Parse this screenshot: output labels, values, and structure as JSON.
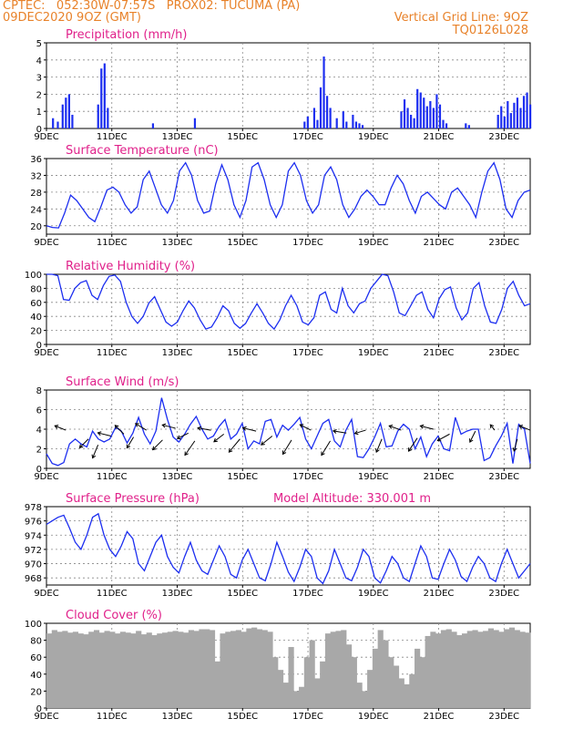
{
  "header": {
    "line1_left": "CPTEC:   052:30W-07:57S   PROX02: TUCUMA (PA)",
    "line2_left": "09DEC2020 9OZ (GMT)",
    "line2_right": "Vertical Grid Line: 9OZ",
    "line3_right": "TQ0126L028"
  },
  "colors": {
    "header": "#e8822a",
    "title": "#e0208a",
    "series": "#1c2ef0",
    "cloud": "#a8a8a8",
    "grid": "#888888"
  },
  "x_ticks": [
    "9DEC",
    "11DEC",
    "13DEC",
    "15DEC",
    "17DEC",
    "19DEC",
    "21DEC",
    "23DEC"
  ],
  "chart_data": [
    {
      "type": "bar",
      "title": "Precipitation (mm/h)",
      "ylim": [
        0,
        5
      ],
      "yticks": [
        "0",
        "1",
        "2",
        "3",
        "4",
        "5"
      ],
      "x": [
        0.2,
        0.35,
        0.5,
        0.6,
        0.7,
        0.8,
        1.6,
        1.7,
        1.8,
        1.9,
        3.3,
        4.6,
        8.0,
        8.1,
        8.3,
        8.4,
        8.5,
        8.6,
        8.7,
        8.8,
        9.0,
        9.2,
        9.3,
        9.5,
        9.6,
        9.7,
        9.8,
        11.0,
        11.1,
        11.2,
        11.3,
        11.4,
        11.5,
        11.6,
        11.7,
        11.8,
        11.9,
        12.0,
        12.1,
        12.2,
        12.3,
        12.4,
        13.0,
        13.1,
        14.0,
        14.1,
        14.2,
        14.3,
        14.4,
        14.5,
        14.6,
        14.7,
        14.8,
        14.9,
        15.0
      ],
      "values": [
        0.6,
        0.4,
        1.4,
        1.8,
        2.0,
        0.8,
        1.4,
        3.5,
        3.8,
        1.2,
        0.3,
        0.6,
        0.4,
        0.7,
        1.2,
        0.5,
        2.4,
        4.2,
        1.9,
        1.2,
        0.6,
        1.0,
        0.4,
        0.8,
        0.4,
        0.3,
        0.2,
        1.0,
        1.7,
        1.2,
        0.8,
        0.6,
        2.3,
        2.1,
        1.8,
        1.3,
        1.6,
        1.2,
        2.0,
        1.4,
        0.5,
        0.3,
        0.3,
        0.2,
        0.8,
        1.3,
        0.7,
        1.6,
        0.9,
        1.5,
        1.8,
        1.2,
        1.9,
        2.1,
        1.4
      ],
      "x_range": [
        0,
        15
      ]
    },
    {
      "type": "line",
      "title": "Surface Temperature (nC)",
      "ylim": [
        18,
        36
      ],
      "yticks": [
        "20",
        "24",
        "28",
        "32",
        "36"
      ],
      "x_range": [
        0,
        15
      ],
      "values": [
        20,
        19.6,
        19.5,
        23,
        27.3,
        26,
        24,
        22,
        21,
        24.5,
        28.5,
        29.2,
        28,
        25,
        23,
        24.5,
        31,
        33,
        29,
        25,
        23,
        26,
        33,
        35,
        32,
        26,
        23,
        23.5,
        30,
        34.5,
        31,
        25,
        22,
        26,
        34,
        35,
        31,
        25,
        22,
        25,
        33,
        35,
        32,
        26,
        23,
        25,
        32,
        34,
        31,
        25,
        22,
        24,
        27,
        28.5,
        27,
        25,
        25,
        29,
        32,
        30,
        26,
        23,
        27,
        28,
        26.5,
        25,
        24,
        28,
        29,
        27,
        25,
        22,
        28,
        33,
        35,
        31,
        24,
        22,
        26,
        28,
        28.5
      ]
    },
    {
      "type": "line",
      "title": "Relative Humidity (%)",
      "ylim": [
        0,
        100
      ],
      "yticks": [
        "0",
        "20",
        "40",
        "60",
        "80",
        "100"
      ],
      "x_range": [
        0,
        15
      ],
      "values": [
        100,
        100,
        98,
        64,
        63,
        80,
        88,
        91,
        70,
        64,
        84,
        97,
        99,
        90,
        60,
        40,
        30,
        40,
        59,
        68,
        50,
        32,
        26,
        32,
        48,
        62,
        52,
        35,
        22,
        25,
        38,
        55,
        48,
        30,
        23,
        30,
        45,
        58,
        45,
        30,
        22,
        35,
        55,
        70,
        55,
        32,
        28,
        38,
        70,
        75,
        50,
        45,
        80,
        55,
        45,
        58,
        62,
        80,
        90,
        100,
        98,
        75,
        45,
        41,
        55,
        70,
        75,
        50,
        38,
        65,
        78,
        82,
        52,
        35,
        45,
        80,
        88,
        55,
        32,
        30,
        50,
        80,
        90,
        70,
        55,
        58
      ]
    },
    {
      "type": "line",
      "title": "Surface Wind (m/s)",
      "ylim": [
        0,
        8
      ],
      "yticks": [
        "0",
        "2",
        "4",
        "6",
        "8"
      ],
      "x_range": [
        0,
        15
      ],
      "values": [
        1.5,
        0.5,
        0.3,
        0.6,
        2.5,
        3.0,
        2.5,
        2.2,
        3.8,
        3.0,
        2.7,
        3.0,
        4.2,
        3.8,
        2.6,
        3.6,
        5.2,
        3.5,
        2.5,
        3.8,
        7.2,
        5.0,
        3.2,
        2.7,
        3.5,
        4.5,
        5.3,
        4.0,
        3.0,
        3.3,
        4.3,
        5.0,
        3.0,
        3.5,
        4.6,
        2.0,
        2.8,
        2.5,
        4.8,
        5.0,
        3.2,
        4.4,
        3.9,
        4.5,
        5.2,
        3.0,
        2.0,
        3.3,
        4.6,
        5.0,
        2.8,
        2.2,
        3.9,
        5.0,
        1.2,
        1.1,
        2.0,
        3.2,
        4.6,
        2.2,
        2.3,
        3.8,
        4.5,
        4.0,
        2.0,
        3.2,
        1.2,
        2.5,
        3.3,
        2.0,
        1.8,
        5.2,
        3.5,
        3.8,
        4.0,
        4.0,
        0.8,
        1.1,
        2.3,
        3.3,
        4.6,
        0.5,
        4.5,
        4.0,
        0.5
      ],
      "vectors": [
        {
          "x": 0.6,
          "y": 3.9,
          "u": -1,
          "v": 0.4
        },
        {
          "x": 1.3,
          "y": 3.0,
          "u": -0.8,
          "v": -0.8
        },
        {
          "x": 1.6,
          "y": 2.4,
          "u": -0.5,
          "v": -1.2
        },
        {
          "x": 2.0,
          "y": 3.3,
          "u": -1.2,
          "v": 0.3
        },
        {
          "x": 2.4,
          "y": 3.5,
          "u": -0.8,
          "v": 0.8
        },
        {
          "x": 2.7,
          "y": 3.2,
          "u": -0.6,
          "v": -1.0
        },
        {
          "x": 3.1,
          "y": 3.9,
          "u": -1,
          "v": 0.6
        },
        {
          "x": 3.6,
          "y": 2.9,
          "u": -0.9,
          "v": -0.9
        },
        {
          "x": 4.0,
          "y": 4.1,
          "u": -1.2,
          "v": 0.3
        },
        {
          "x": 4.4,
          "y": 3.6,
          "u": -1.0,
          "v": -0.5
        },
        {
          "x": 4.6,
          "y": 2.8,
          "u": -0.9,
          "v": -1.3
        },
        {
          "x": 5.1,
          "y": 3.9,
          "u": -1.2,
          "v": 0.2
        },
        {
          "x": 5.5,
          "y": 3.5,
          "u": -0.9,
          "v": -0.7
        },
        {
          "x": 6.0,
          "y": 3.0,
          "u": -1.0,
          "v": -1.2
        },
        {
          "x": 6.5,
          "y": 3.8,
          "u": -1.2,
          "v": 0.3
        },
        {
          "x": 7.0,
          "y": 3.3,
          "u": -1,
          "v": -0.8
        },
        {
          "x": 7.6,
          "y": 2.9,
          "u": -0.8,
          "v": -1.3
        },
        {
          "x": 8.2,
          "y": 3.9,
          "u": -1,
          "v": 0.5
        },
        {
          "x": 8.8,
          "y": 2.8,
          "u": -0.8,
          "v": -1.3
        },
        {
          "x": 9.3,
          "y": 3.6,
          "u": -1.2,
          "v": 0.2
        },
        {
          "x": 9.9,
          "y": 3.9,
          "u": -1,
          "v": -0.3
        },
        {
          "x": 10.4,
          "y": 3.0,
          "u": -0.5,
          "v": -1.2
        },
        {
          "x": 11.0,
          "y": 3.9,
          "u": -1.1,
          "v": 0.4
        },
        {
          "x": 11.5,
          "y": 3.1,
          "u": -0.8,
          "v": -1.2
        },
        {
          "x": 12.0,
          "y": 4.0,
          "u": -1.2,
          "v": 0.3
        },
        {
          "x": 12.5,
          "y": 3.5,
          "u": -1.1,
          "v": -0.6
        },
        {
          "x": 13.3,
          "y": 3.8,
          "u": -0.5,
          "v": -1.0
        },
        {
          "x": 13.9,
          "y": 3.9,
          "u": -0.4,
          "v": 0.5
        },
        {
          "x": 14.6,
          "y": 3.0,
          "u": -0.3,
          "v": -1.1
        },
        {
          "x": 15.0,
          "y": 3.9,
          "u": -1.0,
          "v": 0.4
        }
      ]
    },
    {
      "type": "line",
      "title": "Surface Pressure (hPa)",
      "annotation": "Model Altitude: 330.001 m",
      "ylim": [
        967,
        978
      ],
      "yticks": [
        "968",
        "970",
        "972",
        "974",
        "976",
        "978"
      ],
      "x_range": [
        0,
        15
      ],
      "values": [
        975.5,
        976,
        976.5,
        976.8,
        975,
        973,
        972,
        974,
        976.5,
        977,
        974,
        972,
        971,
        972.5,
        974.5,
        973.5,
        970,
        969,
        971,
        973,
        974,
        971,
        969.5,
        968.7,
        971,
        973,
        970.5,
        969,
        968.5,
        970.5,
        972.5,
        971,
        968.5,
        968,
        970.5,
        972,
        970,
        968,
        967.6,
        970,
        973,
        971,
        968.8,
        967.5,
        969.5,
        972,
        971,
        968,
        967.2,
        969,
        972,
        970,
        968,
        967.6,
        969.5,
        972,
        971,
        968,
        967.3,
        969,
        971,
        970,
        968,
        967.5,
        970,
        972.5,
        971,
        968,
        967.8,
        970,
        972,
        970.5,
        968.2,
        967.5,
        969.5,
        971,
        970,
        968,
        967.5,
        970,
        972,
        970,
        968,
        969,
        970
      ]
    },
    {
      "type": "area",
      "title": "Cloud Cover (%)",
      "ylim": [
        0,
        100
      ],
      "yticks": [
        "0",
        "20",
        "40",
        "60",
        "80",
        "100"
      ],
      "x_range": [
        0,
        15
      ],
      "values": [
        88,
        92,
        90,
        91,
        89,
        90,
        88,
        87,
        90,
        92,
        89,
        91,
        90,
        88,
        90,
        89,
        88,
        91,
        87,
        89,
        86,
        88,
        89,
        90,
        91,
        90,
        89,
        92,
        91,
        93,
        93,
        92,
        55,
        88,
        90,
        91,
        92,
        90,
        94,
        95,
        93,
        92,
        90,
        60,
        45,
        30,
        72,
        20,
        25,
        60,
        80,
        35,
        55,
        88,
        90,
        91,
        92,
        75,
        60,
        30,
        20,
        45,
        70,
        92,
        80,
        60,
        50,
        35,
        28,
        40,
        70,
        60,
        85,
        90,
        88,
        92,
        93,
        90,
        86,
        88,
        91,
        92,
        90,
        91,
        94,
        92,
        90,
        93,
        95,
        92,
        90,
        89
      ]
    }
  ]
}
